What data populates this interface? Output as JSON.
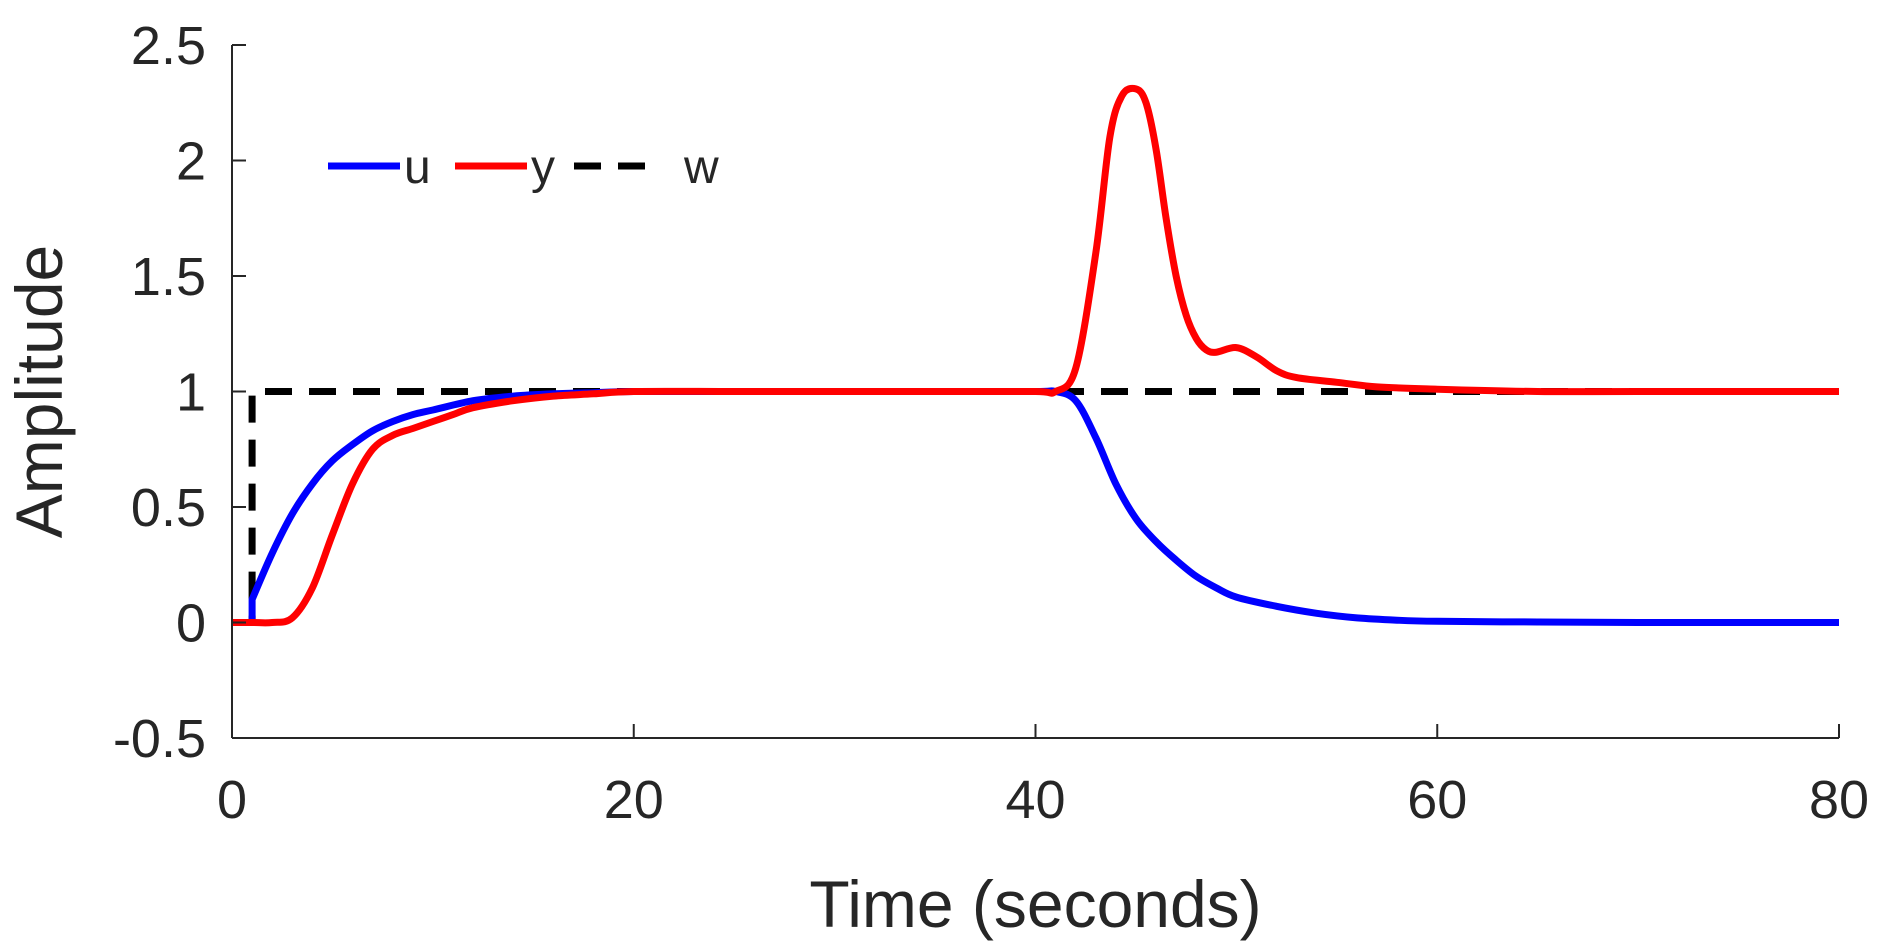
{
  "chart_data": {
    "type": "line",
    "title": "",
    "xlabel": "Time (seconds)",
    "ylabel": "Amplitude",
    "xlim": [
      0,
      80
    ],
    "ylim": [
      -0.5,
      2.5
    ],
    "xticks": [
      0,
      20,
      40,
      60,
      80
    ],
    "xtick_labels": [
      "0",
      "20",
      "40",
      "60",
      "80"
    ],
    "yticks": [
      -0.5,
      0,
      0.5,
      1,
      1.5,
      2,
      2.5
    ],
    "ytick_labels": [
      "-0.5",
      "0",
      "0.5",
      "1",
      "1.5",
      "2",
      "2.5"
    ],
    "grid": false,
    "legend_position": "top-left",
    "series": [
      {
        "name": "u",
        "color": "#0000ff",
        "style": "solid",
        "x": [
          0,
          1,
          1,
          2,
          3,
          4,
          5,
          6,
          7,
          8,
          9,
          10,
          12,
          14,
          16,
          18,
          20,
          25,
          30,
          35,
          40,
          41,
          42,
          43,
          44,
          45,
          46,
          47,
          48,
          49,
          50,
          52,
          54,
          56,
          58,
          60,
          65,
          70,
          75,
          80
        ],
        "y": [
          0,
          0,
          0.1,
          0.3,
          0.47,
          0.6,
          0.7,
          0.77,
          0.83,
          0.87,
          0.9,
          0.92,
          0.96,
          0.98,
          0.99,
          0.995,
          1,
          1,
          1,
          1,
          1,
          1,
          0.96,
          0.8,
          0.6,
          0.45,
          0.35,
          0.27,
          0.2,
          0.15,
          0.11,
          0.07,
          0.04,
          0.02,
          0.01,
          0.005,
          0.002,
          0,
          0,
          0
        ]
      },
      {
        "name": "y",
        "color": "#ff0000",
        "style": "solid",
        "x": [
          0,
          1,
          2,
          3,
          4,
          5,
          6,
          7,
          8,
          9,
          10,
          11,
          12,
          14,
          16,
          18,
          20,
          25,
          30,
          35,
          40,
          41,
          42,
          43,
          43.7,
          44.3,
          45,
          45.5,
          46,
          46.5,
          47,
          47.5,
          48,
          48.5,
          49,
          50,
          51,
          52,
          53,
          55,
          57,
          60,
          65,
          70,
          80
        ],
        "y": [
          0,
          0,
          0,
          0.02,
          0.15,
          0.38,
          0.6,
          0.75,
          0.81,
          0.84,
          0.87,
          0.9,
          0.93,
          0.96,
          0.98,
          0.99,
          1,
          1,
          1,
          1,
          1,
          1,
          1.1,
          1.6,
          2.1,
          2.28,
          2.31,
          2.25,
          2.05,
          1.75,
          1.5,
          1.33,
          1.23,
          1.18,
          1.17,
          1.19,
          1.15,
          1.09,
          1.06,
          1.04,
          1.02,
          1.01,
          1,
          1,
          1
        ]
      },
      {
        "name": "w",
        "color": "#000000",
        "style": "dashed",
        "x": [
          0,
          1,
          1,
          80
        ],
        "y": [
          0,
          0,
          1,
          1
        ]
      }
    ]
  }
}
